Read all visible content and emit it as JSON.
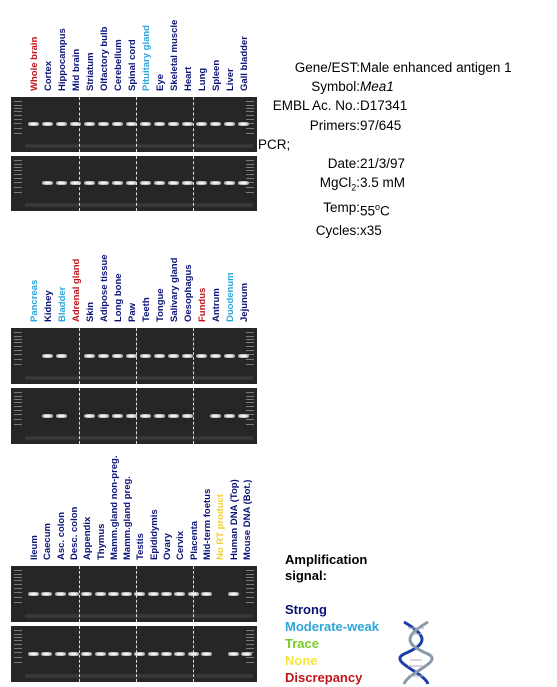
{
  "panels": [
    {
      "labels": [
        {
          "text": "Whole brain",
          "color": "#c0141b"
        },
        {
          "text": "Cortex",
          "color": "#0b1377"
        },
        {
          "text": "Hippocampus",
          "color": "#0b1377"
        },
        {
          "text": "Mid brain",
          "color": "#0b1377"
        },
        {
          "text": "Striatum",
          "color": "#0b1377"
        },
        {
          "text": "Olfactory bulb",
          "color": "#0b1377"
        },
        {
          "text": "Cerebellum",
          "color": "#0b1377"
        },
        {
          "text": "Spinal cord",
          "color": "#0b1377"
        },
        {
          "text": "Pituitary gland",
          "color": "#2ca6dd"
        },
        {
          "text": "Eye",
          "color": "#0b1377"
        },
        {
          "text": "Skeletal muscle",
          "color": "#0b1377"
        },
        {
          "text": "Heart",
          "color": "#0b1377"
        },
        {
          "text": "Lung",
          "color": "#0b1377"
        },
        {
          "text": "Spleen",
          "color": "#0b1377"
        },
        {
          "text": "Liver",
          "color": "#0b1377"
        },
        {
          "text": "Gall bladder",
          "color": "#0b1377"
        }
      ],
      "gel_top": {
        "bands": [
          1,
          1,
          1,
          1,
          1,
          1,
          1,
          1,
          1,
          1,
          1,
          1,
          1,
          1,
          1,
          1
        ]
      },
      "gel_bottom": {
        "bands": [
          0,
          1,
          1,
          1,
          1,
          1,
          1,
          1,
          1,
          1,
          1,
          1,
          1,
          1,
          1,
          1
        ]
      }
    },
    {
      "labels": [
        {
          "text": "Pancreas",
          "color": "#2ca6dd"
        },
        {
          "text": "Kidney",
          "color": "#0b1377"
        },
        {
          "text": "Bladder",
          "color": "#2ca6dd"
        },
        {
          "text": "Adrenal gland",
          "color": "#c0141b"
        },
        {
          "text": "Skin",
          "color": "#0b1377"
        },
        {
          "text": "Adipose tissue",
          "color": "#0b1377"
        },
        {
          "text": "Long bone",
          "color": "#0b1377"
        },
        {
          "text": "Paw",
          "color": "#0b1377"
        },
        {
          "text": "Teeth",
          "color": "#0b1377"
        },
        {
          "text": "Tongue",
          "color": "#0b1377"
        },
        {
          "text": "Salivary gland",
          "color": "#0b1377"
        },
        {
          "text": "Oesophagus",
          "color": "#0b1377"
        },
        {
          "text": "Fundus",
          "color": "#c0141b"
        },
        {
          "text": "Antrum",
          "color": "#0b1377"
        },
        {
          "text": "Duodenum",
          "color": "#2ca6dd"
        },
        {
          "text": "Jejunum",
          "color": "#0b1377"
        }
      ],
      "gel_top": {
        "bands": [
          0,
          1,
          1,
          0,
          1,
          1,
          1,
          1,
          1,
          1,
          1,
          1,
          1,
          1,
          1,
          1
        ]
      },
      "gel_bottom": {
        "bands": [
          0,
          1,
          1,
          0,
          1,
          1,
          1,
          1,
          1,
          1,
          1,
          1,
          0,
          1,
          1,
          1
        ]
      }
    },
    {
      "labels": [
        {
          "text": "Ileum",
          "color": "#0b1377"
        },
        {
          "text": "Caecum",
          "color": "#0b1377"
        },
        {
          "text": "Asc. colon",
          "color": "#0b1377"
        },
        {
          "text": "Desc. colon",
          "color": "#0b1377"
        },
        {
          "text": "Appendix",
          "color": "#0b1377"
        },
        {
          "text": "Thymus",
          "color": "#0b1377"
        },
        {
          "text": "Mamm.gland non-preg.",
          "color": "#0b1377"
        },
        {
          "text": "Mamm.gland preg.",
          "color": "#0b1377"
        },
        {
          "text": "Testis",
          "color": "#0b1377"
        },
        {
          "text": "Epididymis",
          "color": "#0b1377"
        },
        {
          "text": "Ovary",
          "color": "#0b1377"
        },
        {
          "text": "Cervix",
          "color": "#0b1377"
        },
        {
          "text": "Placenta",
          "color": "#0b1377"
        },
        {
          "text": "Mid-term foetus",
          "color": "#0b1377"
        },
        {
          "text": "No RT product",
          "color": "#f3cf3b"
        },
        {
          "text": "Human DNA (Top)",
          "color": "#0b1377"
        },
        {
          "text": "Mouse DNA (Bot.)",
          "color": "#0b1377"
        }
      ],
      "gel_top": {
        "bands": [
          1,
          1,
          1,
          1,
          1,
          1,
          1,
          1,
          1,
          1,
          1,
          1,
          1,
          1,
          0,
          1,
          0
        ]
      },
      "gel_bottom": {
        "bands": [
          1,
          1,
          1,
          1,
          1,
          1,
          1,
          1,
          1,
          1,
          1,
          1,
          1,
          1,
          0,
          1,
          1
        ]
      }
    }
  ],
  "info": {
    "gene_label": "Gene/EST:",
    "gene_value": "Male enhanced antigen 1",
    "symbol_label": "Symbol:",
    "symbol_value": "Mea1",
    "embl_label": "EMBL Ac. No.:",
    "embl_value": "D17341",
    "primers_label": "Primers:",
    "primers_value": "97/645",
    "pcr_label": "PCR;",
    "date_label": "Date:",
    "date_value": "21/3/97",
    "mgcl_label_pre": "MgCl",
    "mgcl_label_sub": "2",
    "mgcl_label_post": ":",
    "mgcl_value": "3.5 mM",
    "temp_label": "Temp:",
    "temp_value_pre": "55",
    "temp_value_sup": "o",
    "temp_value_post": "C",
    "cycles_label": "Cycles:",
    "cycles_value": "x35"
  },
  "legend": {
    "title_line1": "Amplification",
    "title_line2": "signal:",
    "items": [
      {
        "text": "Strong",
        "color": "#0b1377"
      },
      {
        "text": "Moderate-weak",
        "color": "#2ca6dd"
      },
      {
        "text": "Trace",
        "color": "#7ccb27"
      },
      {
        "text": "None",
        "color": "#f5e53b"
      },
      {
        "text": "Discrepancy",
        "color": "#c0141b"
      }
    ]
  }
}
